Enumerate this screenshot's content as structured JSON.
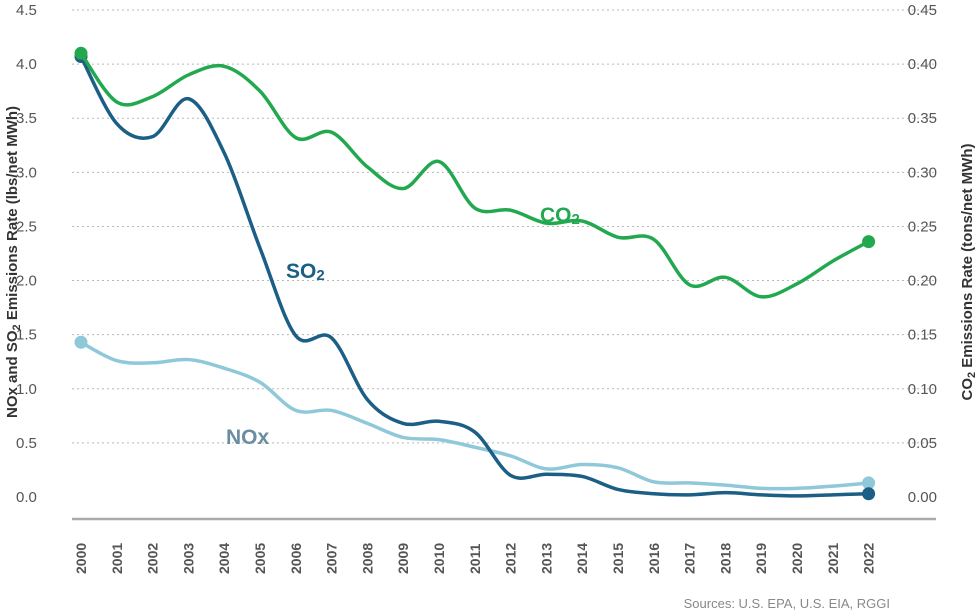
{
  "chart_data": {
    "type": "line",
    "x": [
      "2000",
      "2001",
      "2002",
      "2003",
      "2004",
      "2005",
      "2006",
      "2007",
      "2008",
      "2009",
      "2010",
      "2011",
      "2012",
      "2013",
      "2014",
      "2015",
      "2016",
      "2017",
      "2018",
      "2019",
      "2020",
      "2021",
      "2022"
    ],
    "y_left": {
      "label_parts": [
        "NOx and SO",
        "2",
        " Emissions Rate (lbs/net MWh)"
      ],
      "ylim": [
        0,
        4.5
      ],
      "ticks": [
        "0.0",
        "0.5",
        "1.0",
        "1.5",
        "2.0",
        "2.5",
        "3.0",
        "3.5",
        "4.0",
        "4.5"
      ]
    },
    "y_right": {
      "label_parts": [
        "CO",
        "2",
        " Emissions Rate (tons/net MWh)"
      ],
      "ylim": [
        0,
        0.45
      ],
      "ticks": [
        "0.00",
        "0.05",
        "0.10",
        "0.15",
        "0.20",
        "0.25",
        "0.30",
        "0.35",
        "0.40",
        "0.45"
      ]
    },
    "grid": true,
    "series": [
      {
        "name": "CO2",
        "label_main": "CO",
        "label_sub": "2",
        "axis": "right",
        "color": "#22a84f",
        "values": [
          0.41,
          0.365,
          0.37,
          0.39,
          0.398,
          0.375,
          0.332,
          0.337,
          0.305,
          0.285,
          0.31,
          0.267,
          0.265,
          0.253,
          0.255,
          0.24,
          0.238,
          0.196,
          0.203,
          0.185,
          0.197,
          0.218,
          0.236
        ]
      },
      {
        "name": "SO2",
        "label_main": "SO",
        "label_sub": "2",
        "axis": "left",
        "color": "#1b5e86",
        "values": [
          4.07,
          3.45,
          3.33,
          3.68,
          3.18,
          2.3,
          1.49,
          1.47,
          0.9,
          0.68,
          0.7,
          0.6,
          0.2,
          0.21,
          0.19,
          0.07,
          0.03,
          0.02,
          0.04,
          0.02,
          0.01,
          0.02,
          0.03
        ]
      },
      {
        "name": "NOx",
        "label_main": "NOx",
        "label_sub": "",
        "axis": "left",
        "color": "#8fc8d9",
        "label_color": "#6a8ea0",
        "values": [
          1.43,
          1.26,
          1.24,
          1.27,
          1.19,
          1.06,
          0.8,
          0.8,
          0.68,
          0.55,
          0.53,
          0.46,
          0.38,
          0.26,
          0.3,
          0.27,
          0.14,
          0.13,
          0.11,
          0.08,
          0.08,
          0.1,
          0.13
        ]
      }
    ]
  },
  "source_text": "Sources: U.S. EPA, U.S. EIA, RGGI"
}
